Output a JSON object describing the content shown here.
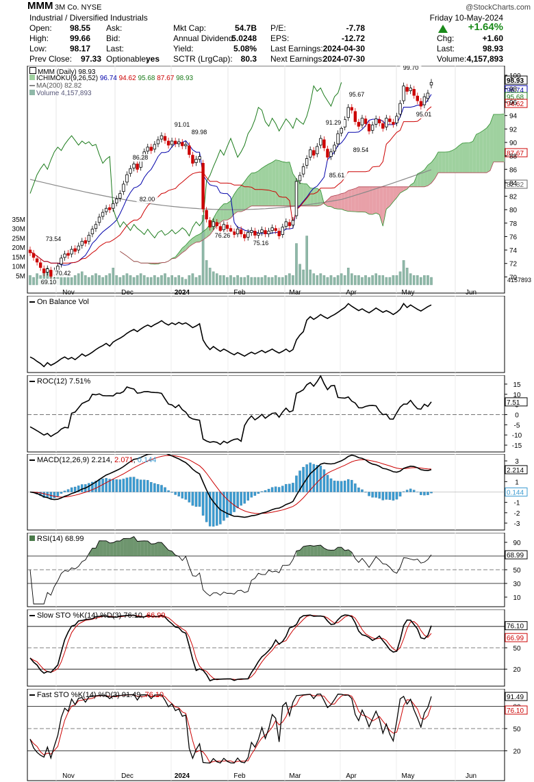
{
  "header": {
    "symbol": "MMM",
    "company": "3M Co. NYSE",
    "sector": "Industrial / Diversified Industrials",
    "brand": "@StockCharts.com",
    "date": "Friday  10-May-2024",
    "change_pct": "+1.64%",
    "left_col": [
      {
        "label": "Open:",
        "value": "98.55"
      },
      {
        "label": "High:",
        "value": "99.66"
      },
      {
        "label": "Low:",
        "value": "98.17"
      },
      {
        "label": "Prev Close:",
        "value": "97.33"
      }
    ],
    "ask_col": [
      {
        "label": "Ask:",
        "value": ""
      },
      {
        "label": "Bid:",
        "value": ""
      },
      {
        "label": "Last:",
        "value": ""
      },
      {
        "label": "Optionable:",
        "value": "yes"
      }
    ],
    "mid_col": [
      {
        "label": "Mkt Cap:",
        "value": "54.7B"
      },
      {
        "label": "Annual Dividend:",
        "value": "5.0248"
      },
      {
        "label": "Yield:",
        "value": "5.08%"
      },
      {
        "label": "SCTR (LrgCap):",
        "value": "80.3"
      }
    ],
    "pe_col": [
      {
        "label": "P/E:",
        "value": "-7.78"
      },
      {
        "label": "EPS:",
        "value": "-12.72"
      },
      {
        "label": "Last Earnings:",
        "value": "2024-04-30"
      },
      {
        "label": "Next Earnings:",
        "value": "2024-07-30"
      }
    ],
    "right_col": [
      {
        "label": "Chg:",
        "value": "+1.60"
      },
      {
        "label": "Last:",
        "value": "98.93"
      },
      {
        "label": "Volume:",
        "value": "4,157,893"
      }
    ]
  },
  "legends": {
    "price": "MMM (Daily) 98.93",
    "ichimoku_name": "ICHIMOKU(9,26,52)",
    "ichimoku_vals": [
      "96.74",
      "94.62",
      "95.68",
      "87.67",
      "98.93"
    ],
    "ma": "MA(200) 82.82",
    "volume": "Volume 4,157,893",
    "obv": "On Balance Vol",
    "roc": "ROC(12) 7.51%",
    "macd_name": "MACD(12,26,9)",
    "macd_vals": [
      "2.214",
      "2.071",
      "0.144"
    ],
    "rsi": "RSI(14) 68.99",
    "slow_name": "Slow STO %K(14) %D(3)",
    "slow_vals": [
      "76.10",
      "66.99"
    ],
    "fast_name": "Fast STO %K(14) %D(3)",
    "fast_vals": [
      "91.49",
      "76.10"
    ]
  },
  "colors": {
    "up": "#000000",
    "down": "#cc0000",
    "tenkan": "#0000aa",
    "kijun": "#cc0000",
    "chikou": "#1a7a1a",
    "cloud_bull": "#9fd19f",
    "cloud_bear": "#e8a0a8",
    "ma200": "#888888",
    "volume": "#8fb8a8",
    "macd_hist": "#3b9bd1"
  },
  "chart_data": [
    {
      "type": "candlestick",
      "title": "MMM (Daily) 98.93",
      "ylim": [
        68,
        101
      ],
      "yticks": [
        70,
        72,
        74,
        76,
        78,
        80,
        82,
        84,
        86,
        88,
        90,
        92,
        94,
        96,
        98,
        100
      ],
      "x_labels": [
        "Nov",
        "Dec",
        "2024",
        "Feb",
        "Mar",
        "Apr",
        "May",
        "Jun"
      ],
      "annotations": [
        "69.10",
        "70.42",
        "73.54",
        "82.00",
        "86.28",
        "91.01",
        "89.98",
        "76.26",
        "75.16",
        "85.61",
        "89.54",
        "91.29",
        "95.67",
        "99.70",
        "95.01"
      ],
      "right_labels": [
        "98.93",
        "96.74",
        "95.68",
        "94.62",
        "87.67",
        "82.82"
      ],
      "volume_labels": [
        "35M",
        "30M",
        "25M",
        "20M",
        "15M",
        "10M",
        "5M"
      ],
      "volume_last": "4157893",
      "close": [
        73.6,
        72.9,
        72.2,
        71.4,
        70.6,
        71.2,
        70.1,
        70.9,
        71.6,
        72.8,
        73.4,
        73.2,
        74.1,
        73.8,
        74.6,
        75.3,
        75.0,
        76.2,
        77.1,
        77.8,
        78.9,
        79.6,
        80.2,
        80.0,
        80.9,
        81.6,
        82.4,
        83.8,
        85.2,
        86.1,
        86.8,
        86.0,
        87.4,
        88.6,
        89.3,
        88.8,
        89.7,
        90.4,
        91.0,
        90.3,
        89.6,
        90.2,
        89.8,
        90.1,
        89.5,
        89.7,
        88.2,
        86.9,
        87.5,
        87.9,
        80.1,
        78.6,
        77.4,
        78.2,
        77.6,
        76.9,
        77.8,
        77.2,
        76.8,
        76.3,
        77.1,
        76.4,
        75.8,
        76.6,
        76.9,
        76.2,
        76.5,
        77.0,
        76.4,
        76.8,
        77.3,
        76.9,
        76.1,
        77.4,
        78.2,
        77.6,
        78.4,
        84.2,
        85.1,
        86.4,
        87.6,
        88.9,
        88.1,
        89.4,
        90.6,
        89.2,
        87.8,
        88.6,
        89.6,
        91.3,
        92.1,
        93.4,
        95.2,
        94.8,
        93.1,
        92.4,
        93.6,
        92.8,
        91.7,
        92.6,
        93.5,
        92.9,
        92.1,
        93.6,
        93.1,
        92.7,
        93.9,
        95.8,
        98.4,
        97.6,
        98.1,
        97.0,
        96.2,
        95.4,
        96.8,
        97.33,
        98.93
      ],
      "open_offset": [
        0.4,
        0.6,
        0.5,
        0.7,
        0.6,
        -0.5,
        0.9,
        -0.6,
        -0.6,
        -0.9,
        -0.5,
        0.3,
        -0.7,
        0.4,
        -0.6,
        -0.6,
        0.4,
        -0.9,
        -0.7,
        -0.6,
        -0.8,
        -0.6,
        -0.5,
        0.3,
        -0.7,
        -0.6,
        -0.7,
        -1.1,
        -1.1,
        -0.7,
        -0.6,
        0.8,
        -1.1,
        -0.9,
        -0.6,
        0.5,
        -0.7,
        -0.6,
        -0.5,
        0.6,
        0.6,
        -0.5,
        0.4,
        -0.3,
        0.5,
        -0.2,
        1.3,
        1.2,
        -0.5,
        -0.4,
        6.8,
        1.3,
        1.0,
        -0.7,
        0.5,
        0.6,
        -0.8,
        0.5,
        0.4,
        0.4,
        -0.7,
        0.6,
        0.5,
        -0.7,
        -0.3,
        0.6,
        -0.3,
        -0.4,
        0.5,
        -0.4,
        -0.4,
        0.3,
        0.7,
        -1.1,
        -0.7,
        0.5,
        -0.7,
        -5.1,
        -0.8,
        -1.1,
        -1.0,
        -1.1,
        0.7,
        -1.1,
        -1.0,
        1.2,
        1.2,
        -0.7,
        -0.9,
        -1.5,
        -0.7,
        -1.1,
        -1.5,
        0.4,
        1.5,
        0.6,
        -1.0,
        0.7,
        1.0,
        -0.8,
        -0.8,
        0.5,
        0.7,
        -1.3,
        0.4,
        0.3,
        -1.0,
        -1.6,
        -2.2,
        0.6,
        -0.4,
        0.9,
        0.7,
        0.7,
        -1.2,
        -0.8,
        -0.38
      ],
      "volume_m": [
        5,
        4,
        6,
        5,
        7,
        9,
        6,
        4,
        5,
        6,
        4,
        5,
        4,
        5,
        6,
        7,
        5,
        4,
        5,
        6,
        5,
        4,
        5,
        6,
        9,
        5,
        4,
        5,
        6,
        5,
        4,
        5,
        6,
        5,
        4,
        4,
        5,
        4,
        5,
        6,
        4,
        5,
        4,
        5,
        4,
        3,
        5,
        6,
        4,
        5,
        37,
        13,
        9,
        7,
        6,
        5,
        5,
        4,
        5,
        4,
        5,
        4,
        4,
        5,
        4,
        4,
        4,
        4,
        5,
        4,
        4,
        5,
        4,
        4,
        5,
        6,
        5,
        22,
        11,
        8,
        26,
        8,
        6,
        5,
        6,
        5,
        4,
        5,
        4,
        5,
        6,
        5,
        9,
        6,
        5,
        5,
        4,
        5,
        4,
        5,
        6,
        5,
        5,
        4,
        4,
        5,
        5,
        7,
        13,
        9,
        6,
        5,
        5,
        4,
        5,
        5,
        4
      ]
    },
    {
      "type": "line",
      "title": "On Balance Vol",
      "ylim": [
        0,
        100
      ]
    },
    {
      "type": "line",
      "title": "ROC(12) 7.51%",
      "yticks": [
        15,
        10,
        5,
        0,
        -5,
        -10,
        -15
      ],
      "ylim": [
        -17,
        18
      ],
      "last": "7.51"
    },
    {
      "type": "line",
      "title": "MACD(12,26,9)",
      "yticks": [
        3,
        2,
        1,
        0,
        -1,
        -2,
        -3
      ],
      "ylim": [
        -3.4,
        3.4
      ],
      "series": [
        {
          "name": "MACD",
          "last": "2.214"
        },
        {
          "name": "Signal",
          "last": "2.071"
        },
        {
          "name": "Histogram",
          "last": "0.144"
        }
      ]
    },
    {
      "type": "line",
      "title": "RSI(14) 68.99",
      "yticks": [
        90,
        70,
        50,
        30,
        10
      ],
      "ylim": [
        0,
        100
      ],
      "last": "68.99"
    },
    {
      "type": "line",
      "title": "Slow STO %K(14) %D(3)",
      "yticks": [
        80,
        50,
        20
      ],
      "ylim": [
        0,
        100
      ],
      "series": [
        {
          "name": "%K",
          "last": "76.10"
        },
        {
          "name": "%D",
          "last": "66.99"
        }
      ]
    },
    {
      "type": "line",
      "title": "Fast STO %K(14) %D(3)",
      "yticks": [
        80,
        50,
        20
      ],
      "ylim": [
        0,
        100
      ],
      "series": [
        {
          "name": "%K",
          "last": "91.49"
        },
        {
          "name": "%D",
          "last": "76.10"
        }
      ]
    }
  ]
}
